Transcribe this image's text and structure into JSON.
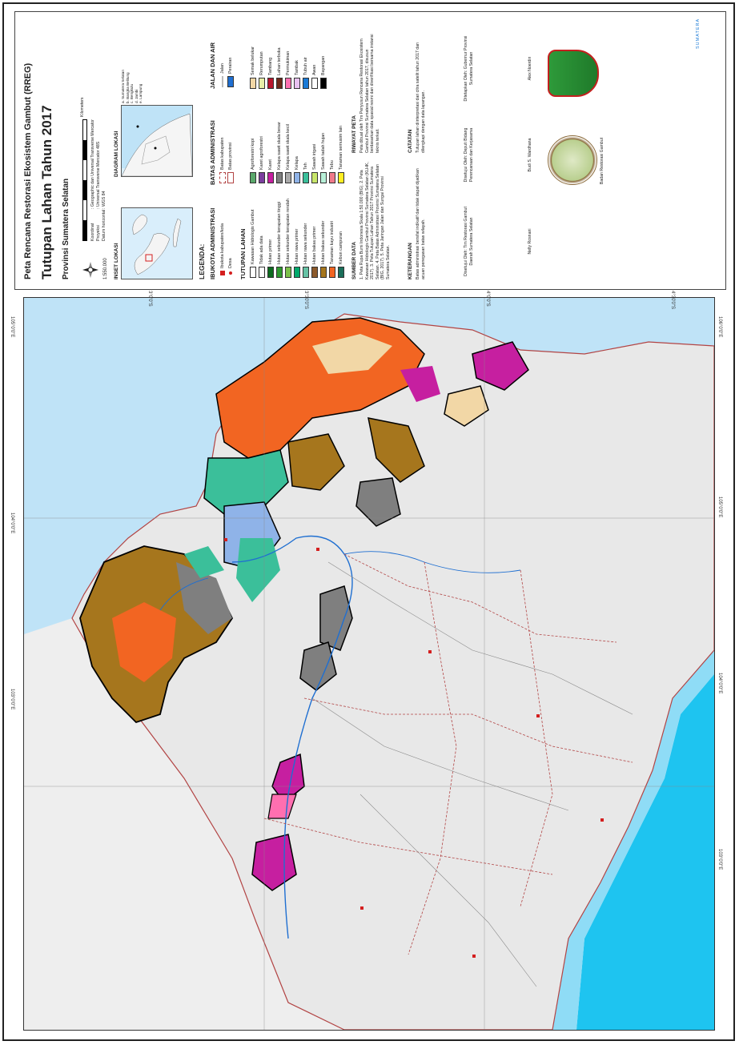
{
  "titles": {
    "line1": "Peta Rencana Restorasi Ekosistem Gambut (RREG)",
    "line2": "Tutupan Lahan Tahun 2017",
    "line3": "Provinsi Sumatera Selatan",
    "brand": "SUMATERA"
  },
  "scale": {
    "ratio": "1:550.000",
    "units": "Kilometers",
    "koordinat_label": "Koordinat",
    "koordinat_value": ": Geographic dan Universal Transverse Mercator",
    "proyeksi_label": "Proyeksi",
    "proyeksi_value": ": Universal Transverse Mercator 48S",
    "datum_label": "Datum horizontal",
    "datum_value": ": WGS 84"
  },
  "insets": {
    "lokasi": "INSET LOKASI",
    "diagram": "DIAGRAM LOKASI",
    "diagram_notes": [
      "a. Sumatera Selatan",
      "b. Bangka Belitung",
      "c. Bengkulu",
      "d. Jambi",
      "e. Lampung"
    ]
  },
  "legend": {
    "heading": "LEGENDA:",
    "ibukota": {
      "title": "IBUKOTA ADMINISTRASI",
      "items": [
        {
          "label": "Ibukota kabupaten/kota",
          "color": "#d41f1f"
        },
        {
          "label": "Desa",
          "color": "#d41f1f"
        }
      ]
    },
    "batas": {
      "title": "BATAS ADMINISTRASI",
      "items": [
        {
          "label": "Batas kabupaten",
          "color": "#b24444"
        },
        {
          "label": "Batas provinsi",
          "color": "#b24444"
        }
      ]
    },
    "jalan": {
      "title": "JALAN DAN AIR",
      "items": [
        {
          "label": "Jalan",
          "color": "#7a7a7a"
        },
        {
          "label": "Perairan",
          "color": "#1f6fd1"
        }
      ]
    },
    "tutupan": {
      "title": "TUTUPAN LAHAN",
      "col1": [
        {
          "label": "Kawasan Hidrologis Gambut",
          "color": "#ffffff"
        },
        {
          "label": "Tidak ada data",
          "color": "#ffffff"
        },
        {
          "label": "Hutan primer",
          "color": "#0d6b1f"
        },
        {
          "label": "Hutan sekunder kerapatan tinggi",
          "color": "#2f9a2f"
        },
        {
          "label": "Hutan sekunder kerapatan rendah",
          "color": "#7cc04a"
        },
        {
          "label": "Hutan rawa primer",
          "color": "#00a86b"
        },
        {
          "label": "Hutan rawa sekunder",
          "color": "#66c2a5"
        },
        {
          "label": "Hutan bakau primer",
          "color": "#8c5a2b"
        },
        {
          "label": "Hutan bakau sekunder",
          "color": "#a6761d"
        },
        {
          "label": "Tanaman kayu industri",
          "color": "#f26522"
        },
        {
          "label": "Kebun campuran",
          "color": "#1a6e5a"
        }
      ],
      "col2": [
        {
          "label": "Agroforestri kopi",
          "color": "#5aa86b"
        },
        {
          "label": "Karet agroforestri",
          "color": "#7b3f9e"
        },
        {
          "label": "Karet",
          "color": "#c61fa0"
        },
        {
          "label": "Kelapa sawit skala besar",
          "color": "#7f7f7f"
        },
        {
          "label": "Kelapa sawit skala kecil",
          "color": "#aaaaaa"
        },
        {
          "label": "Kelapa",
          "color": "#8fb3e8"
        },
        {
          "label": "Teh",
          "color": "#3bbf9a"
        },
        {
          "label": "Sawah irigasi",
          "color": "#c8e66a"
        },
        {
          "label": "Sawah tadah hujan",
          "color": "#b8f0d8"
        },
        {
          "label": "Tebu",
          "color": "#f07a8a"
        },
        {
          "label": "Tanaman semusim lain",
          "color": "#ffee22"
        }
      ],
      "col3": [
        {
          "label": "Semak belukar",
          "color": "#f2d7a6"
        },
        {
          "label": "Rerumputan",
          "color": "#e8f0a8"
        },
        {
          "label": "Tambang",
          "color": "#b8162d"
        },
        {
          "label": "Lahan terbuka",
          "color": "#6e2a1a"
        },
        {
          "label": "Permukiman",
          "color": "#ff6fb0"
        },
        {
          "label": "Tambak",
          "color": "#e8c2f0"
        },
        {
          "label": "Tubuh air",
          "color": "#1a7ad6"
        },
        {
          "label": "Awan",
          "color": "#ffffff"
        },
        {
          "label": "Bayangan",
          "color": "#000000"
        }
      ]
    }
  },
  "sumber": {
    "title": "SUMBER DATA",
    "text": "1. Peta Rupa Bumi Indonesia Skala 1:50.000 (BIG). 2. Peta Kawasan Hidrologis Gambut Provinsi Sumatera Selatan (KLHK, 2017). 3. Peta Tutupan Lahan Tahun 2017 Provinsi Sumatera Selatan. 4. Peta Batas Administrasi Provinsi Sumatera Selatan (BIG, 2017). 5. Peta Jaringan Jalan dan Sungai Provinsi Sumatera Selatan."
  },
  "riwayat": {
    "title": "RIWAYAT PETA",
    "text": "Peta dibuat oleh Tim Penyusun Rencana Restorasi Ekosistem Gambut Provinsi Sumatera Selatan tahun 2017, disusun berdasarkan data spasial resmi dan diverifikasi bersama instansi teknis terkait."
  },
  "keterangan": {
    "title": "KETERANGAN",
    "text": "Batas administrasi bersifat indikatif dan tidak dapat dijadikan acuan penegasan batas wilayah."
  },
  "catatan": {
    "title": "CATATAN",
    "text": "Tutupan lahan diinterpretasi dari citra satelit tahun 2017 dan dilengkapi dengan data lapangan."
  },
  "signatures": {
    "s1_role": "Disetujui Oleh: Tim Restorasi Gambut Daerah Sumatera Selatan",
    "s1_name": "Nelly Rosnani",
    "s2_role": "Disetujui Oleh: Deputi Bidang Perencanaan dan Kerjasama",
    "s2_name": "Budi S. Wardhana",
    "s3_role": "Ditetapkan Oleh: Gubernur Provinsi Sumatera Selatan",
    "s3_name": "Alex Noerdin",
    "org": "Badan Restorasi Gambut"
  },
  "ticks": {
    "top": [
      "3°0'0\"S",
      "3°30'0\"S",
      "4°0'0\"S",
      "4°30'0\"S"
    ],
    "left": [
      "105°0'0\"E",
      "104°0'0\"E",
      "103°0'0\"E"
    ],
    "right": [
      "106°0'0\"E",
      "105°0'0\"E",
      "104°0'0\"E",
      "103°0'0\"E"
    ]
  }
}
